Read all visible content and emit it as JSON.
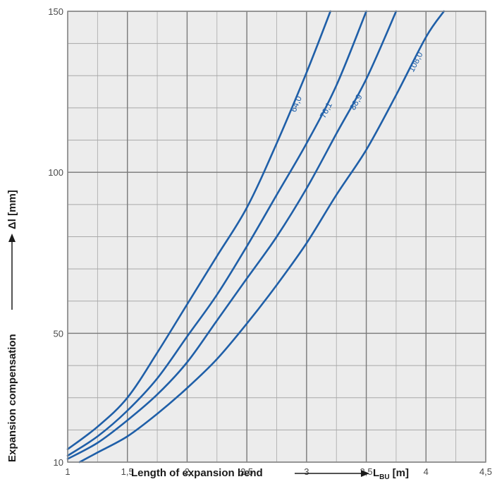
{
  "chart_data": {
    "type": "line",
    "xlabel": "Length of expansion bend",
    "xlabel_symbol": "L",
    "xlabel_subscript": "BU",
    "xlabel_unit": "[m]",
    "ylabel": "Expansion compensation",
    "ylabel_unit": "Δl [mm]",
    "xlim": [
      1,
      4.5
    ],
    "ylim": [
      10,
      150
    ],
    "x_ticks": [
      1,
      1.5,
      2,
      2.5,
      3,
      3.5,
      4,
      4.5
    ],
    "x_tick_labels": [
      "1",
      "1,5",
      "2",
      "2,5",
      "3",
      "3,5",
      "4",
      "4,5"
    ],
    "y_ticks": [
      10,
      50,
      100,
      150
    ],
    "y_tick_labels": [
      "10",
      "50",
      "100",
      "150"
    ],
    "y_minor_step": 10,
    "x_minor_step": 0.25,
    "grid": true,
    "series": [
      {
        "name": "64,0",
        "x": [
          1.0,
          1.25,
          1.5,
          1.75,
          2.0,
          2.25,
          2.5,
          2.75,
          3.0,
          3.2
        ],
        "y": [
          14,
          21,
          30,
          44,
          59,
          74,
          89,
          109,
          131,
          150
        ]
      },
      {
        "name": "76,1",
        "x": [
          1.0,
          1.25,
          1.5,
          1.75,
          2.0,
          2.25,
          2.5,
          2.75,
          3.0,
          3.25,
          3.5
        ],
        "y": [
          12,
          18,
          26,
          36,
          49,
          62,
          77,
          93,
          109,
          127,
          150
        ]
      },
      {
        "name": "88,9",
        "x": [
          1.0,
          1.25,
          1.5,
          1.75,
          2.0,
          2.25,
          2.5,
          2.75,
          3.0,
          3.25,
          3.5,
          3.75
        ],
        "y": [
          11,
          16,
          23,
          31,
          41,
          54,
          67,
          80,
          95,
          112,
          129,
          150
        ]
      },
      {
        "name": "108,0",
        "x": [
          1.1,
          1.25,
          1.5,
          1.75,
          2.0,
          2.25,
          2.5,
          2.75,
          3.0,
          3.25,
          3.5,
          3.75,
          4.0,
          4.15
        ],
        "y": [
          10,
          13,
          18,
          25,
          33,
          42,
          53,
          65,
          78,
          93,
          107,
          124,
          142,
          150
        ]
      }
    ]
  },
  "colors": {
    "plot_background": "#ececec",
    "grid_major": "#7a7a7a",
    "grid_minor": "#a8a8a8",
    "line": "#1f5fa8",
    "frame": "#8a8a8a"
  }
}
